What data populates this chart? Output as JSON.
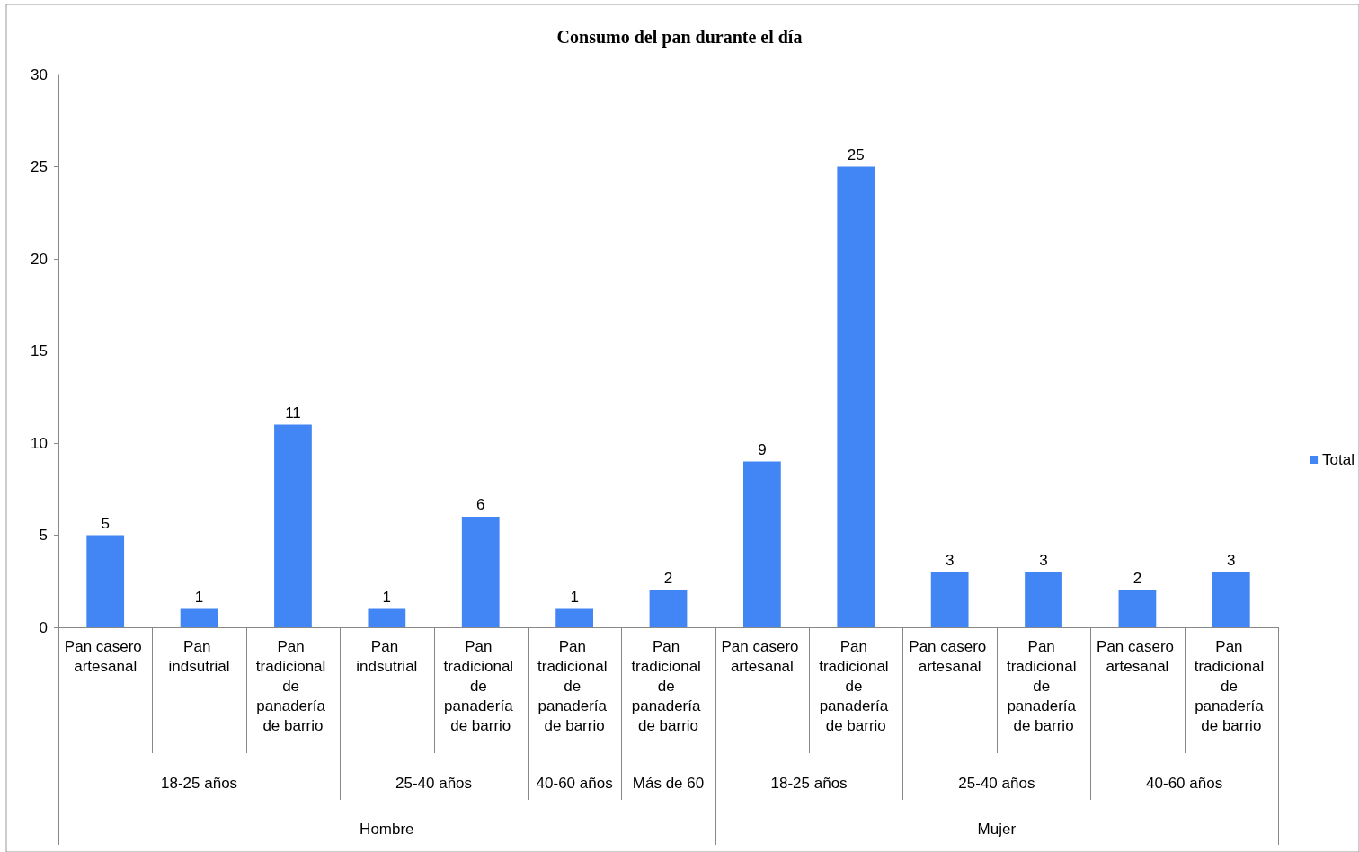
{
  "chart_data": {
    "type": "bar",
    "title": "Consumo del pan durante el día",
    "categories": [
      "Pan casero artesanal",
      "Pan indsutrial",
      "Pan tradicional de panadería de barrio",
      "Pan indsutrial",
      "Pan tradicional de panadería de barrio",
      "Pan tradicional de panadería de barrio",
      "Pan tradicional de panadería de barrio",
      "Pan casero artesanal",
      "Pan tradicional de panadería de barrio",
      "Pan casero artesanal",
      "Pan tradicional de panadería de barrio",
      "Pan casero artesanal",
      "Pan tradicional de panadería de barrio"
    ],
    "series": [
      {
        "name": "Total",
        "color": "#4285f4",
        "values": [
          5,
          1,
          11,
          1,
          6,
          1,
          2,
          9,
          25,
          3,
          3,
          2,
          3
        ]
      }
    ],
    "annotations": [
      "18-25 años",
      "25-40 años",
      "40-60 años",
      "Más de 60",
      "18-25 años",
      "25-40 años",
      "40-60 años",
      "Hombre",
      "Mujer"
    ],
    "ylim": [
      0,
      30
    ],
    "yticks": [
      0,
      5,
      10,
      15,
      20,
      25,
      30
    ],
    "grid": false,
    "legend": "right",
    "data_labels": true
  }
}
